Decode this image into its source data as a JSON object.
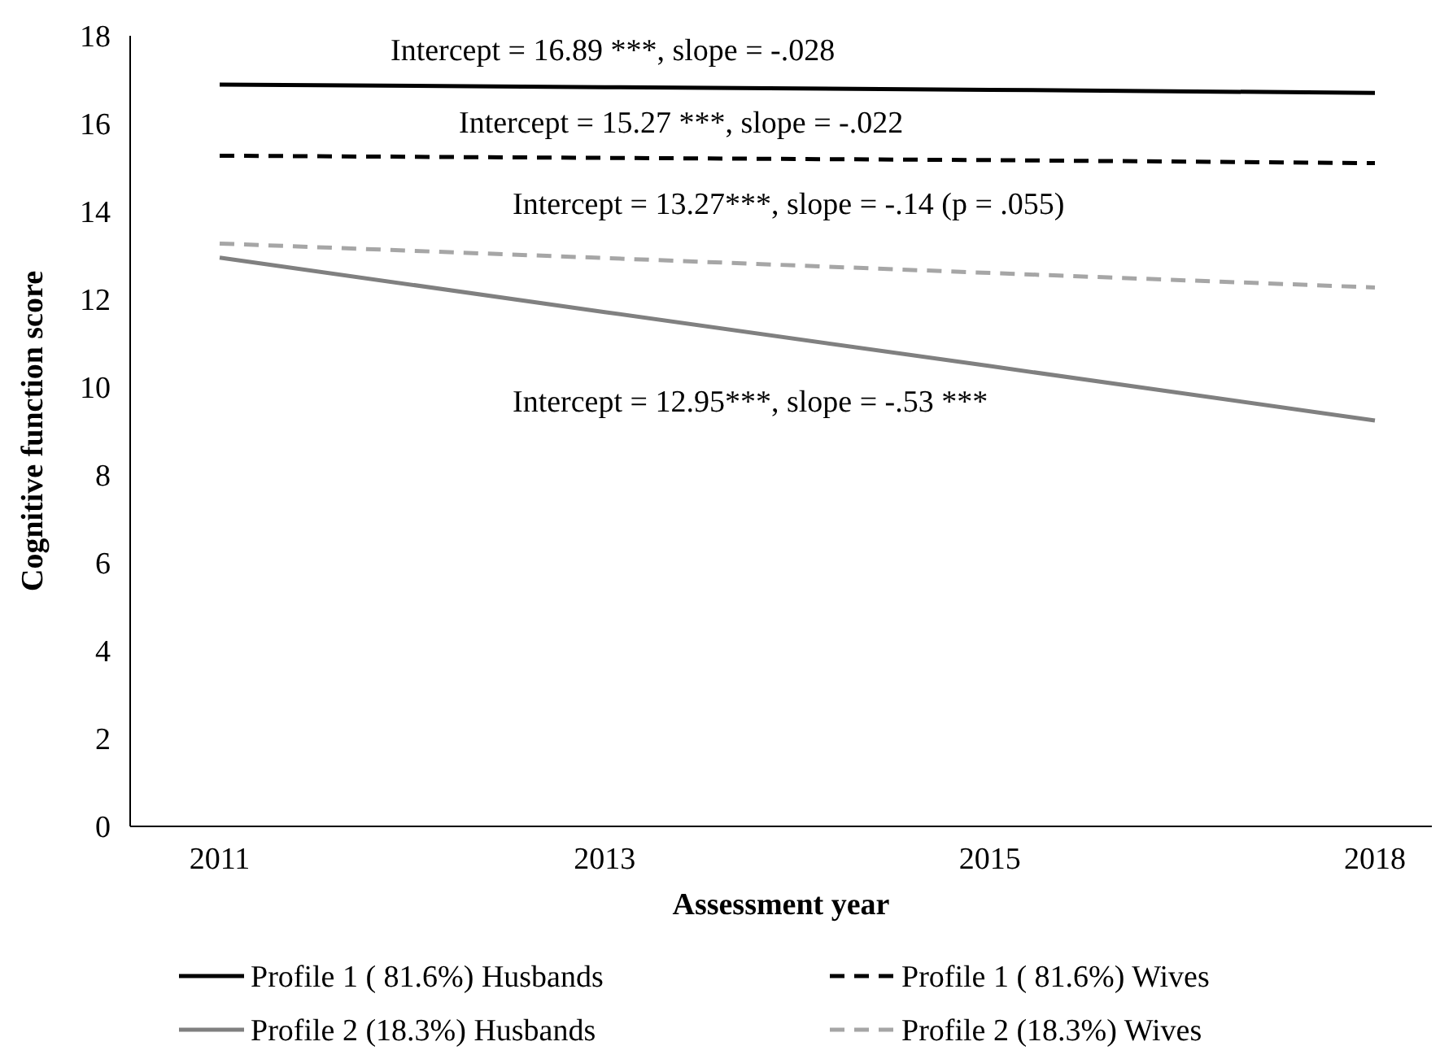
{
  "chart_data": {
    "type": "line",
    "xlabel": "Assessment year",
    "ylabel": "Cognitive function score",
    "categories": [
      "2011",
      "2013",
      "2015",
      "2018"
    ],
    "ylim": [
      0,
      18
    ],
    "yticks": [
      0,
      2,
      4,
      6,
      8,
      10,
      12,
      14,
      16,
      18
    ],
    "grid": false,
    "legend": "bottom",
    "marker": "none",
    "series": [
      {
        "name": "Profile 1 ( 81.6%) Husbands",
        "color": "#000000",
        "line_style": "solid",
        "values": [
          16.89,
          16.83,
          16.77,
          16.7
        ]
      },
      {
        "name": "Profile 1 ( 81.6%) Wives",
        "color": "#000000",
        "line_style": "dashed",
        "values": [
          15.27,
          15.22,
          15.17,
          15.1
        ]
      },
      {
        "name": "Profile 2 (18.3%) Husbands",
        "color": "#808080",
        "line_style": "solid",
        "values": [
          12.95,
          11.71,
          10.48,
          9.24
        ]
      },
      {
        "name": "Profile 2 (18.3%) Wives",
        "color": "#a6a6a6",
        "line_style": "dashed",
        "values": [
          13.27,
          12.94,
          12.6,
          12.27
        ]
      }
    ],
    "annotations": [
      "Intercept = 16.89 ***, slope = -.028",
      "Intercept = 15.27 ***, slope = -.022",
      "Intercept = 13.27***, slope = -.14 (p = .055)",
      "Intercept = 12.95***, slope = -.53 ***"
    ]
  }
}
